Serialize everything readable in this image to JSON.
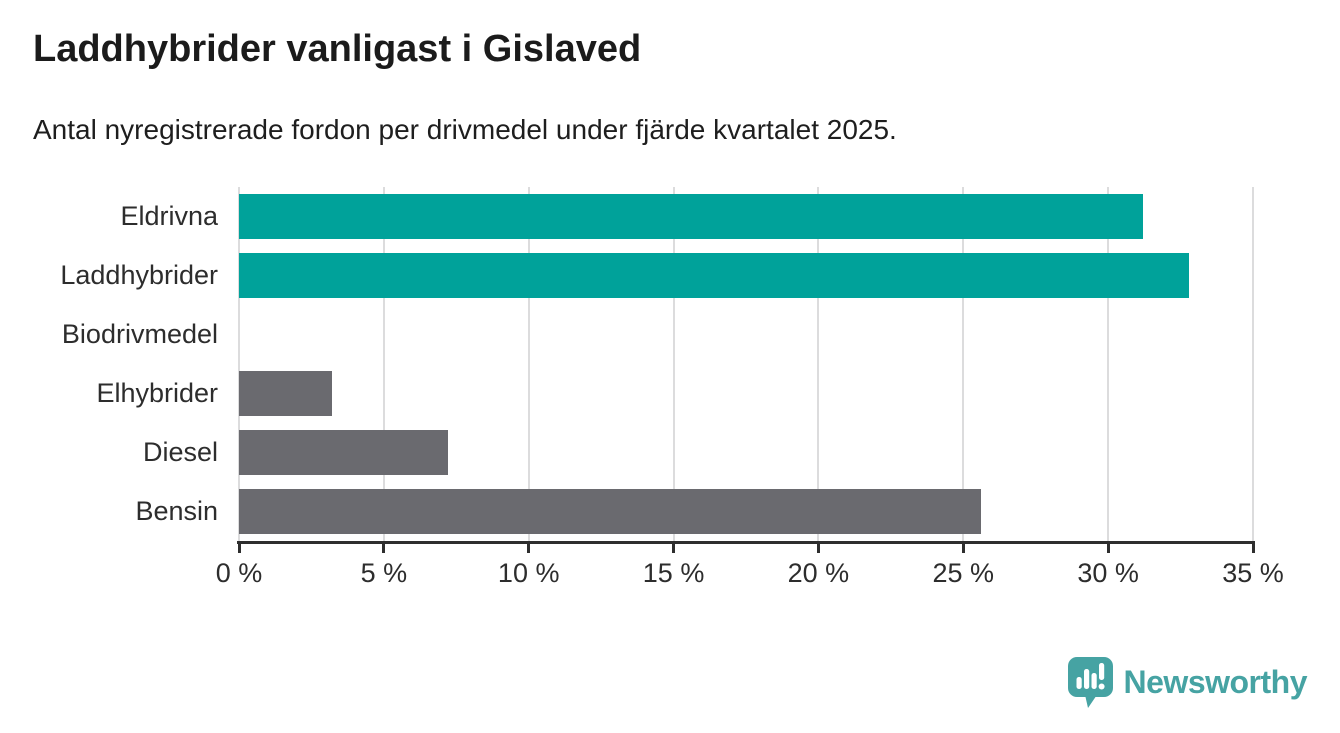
{
  "chart_data": {
    "type": "bar",
    "orientation": "horizontal",
    "title": "Laddhybrider vanligast i Gislaved",
    "subtitle": "Antal nyregistrerade fordon per drivmedel under fjärde kvartalet 2025.",
    "categories": [
      "Eldrivna",
      "Laddhybrider",
      "Biodrivmedel",
      "Elhybrider",
      "Diesel",
      "Bensin"
    ],
    "values": [
      31.2,
      32.8,
      0,
      3.2,
      7.2,
      25.6
    ],
    "unit": "%",
    "bar_colors": [
      "#00a29a",
      "#00a29a",
      "#6a6a6f",
      "#6a6a6f",
      "#6a6a6f",
      "#6a6a6f"
    ],
    "highlight_color": "#00a29a",
    "default_color": "#6a6a6f",
    "xlim": [
      0,
      35
    ],
    "x_ticks": [
      0,
      5,
      10,
      15,
      20,
      25,
      30,
      35
    ],
    "x_tick_labels": [
      "0 %",
      "5 %",
      "10 %",
      "15 %",
      "20 %",
      "25 %",
      "30 %",
      "35 %"
    ],
    "grid": true,
    "legend": false,
    "gridline_color": "#dcdcdd",
    "axis_color": "#2e2e2e"
  },
  "footer": {
    "brand": "Newsworthy",
    "brand_color": "#46a3a3"
  }
}
